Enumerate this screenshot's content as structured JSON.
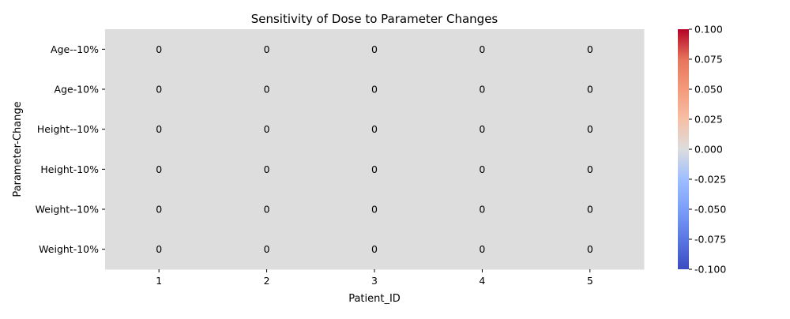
{
  "chart_data": {
    "type": "heatmap",
    "title": "Sensitivity of Dose to Parameter Changes",
    "xlabel": "Patient_ID",
    "ylabel": "Parameter-Change",
    "x_categories": [
      "1",
      "2",
      "3",
      "4",
      "5"
    ],
    "y_categories": [
      "Age--10%",
      "Age-10%",
      "Height--10%",
      "Height-10%",
      "Weight--10%",
      "Weight-10%"
    ],
    "values": [
      [
        0,
        0,
        0,
        0,
        0
      ],
      [
        0,
        0,
        0,
        0,
        0
      ],
      [
        0,
        0,
        0,
        0,
        0
      ],
      [
        0,
        0,
        0,
        0,
        0
      ],
      [
        0,
        0,
        0,
        0,
        0
      ],
      [
        0,
        0,
        0,
        0,
        0
      ]
    ],
    "annotations": true,
    "colormap": "coolwarm",
    "colorbar": {
      "vmin": -0.1,
      "vmax": 0.1,
      "ticks": [
        "-0.100",
        "-0.075",
        "-0.050",
        "-0.025",
        "0.000",
        "0.025",
        "0.050",
        "0.075",
        "0.100"
      ]
    }
  }
}
